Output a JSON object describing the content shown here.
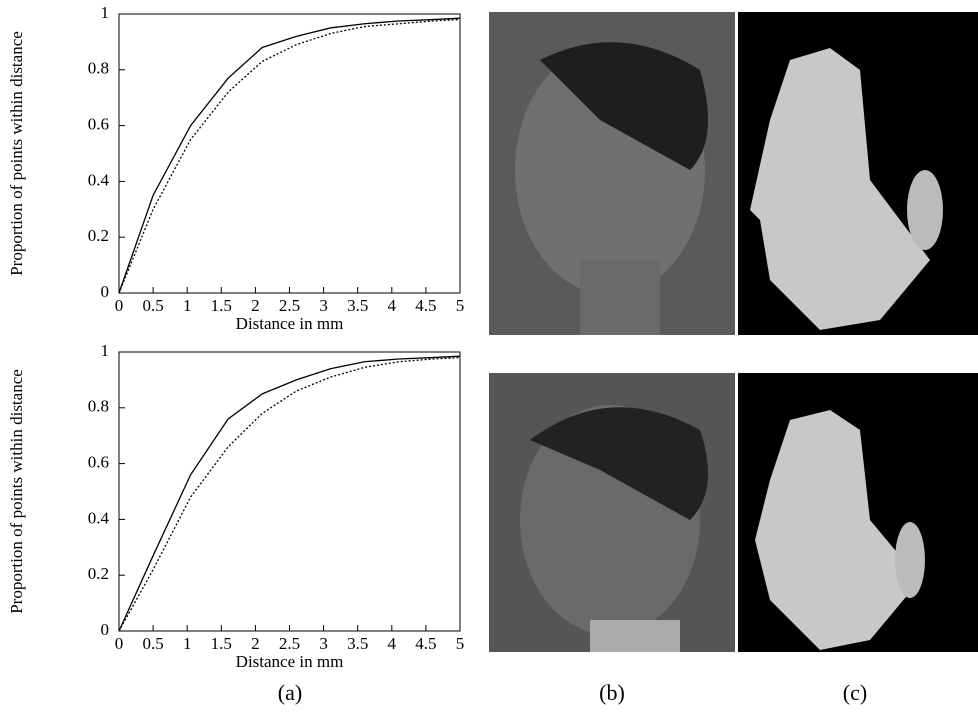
{
  "chart_data": [
    {
      "type": "line",
      "xlabel": "Distance in mm",
      "ylabel": "Proportion of points within distance",
      "x": [
        0,
        0.5,
        1.05,
        1.6,
        2.1,
        2.6,
        3.1,
        3.6,
        4.1,
        4.6,
        5
      ],
      "series": [
        {
          "color": "#000000",
          "dash": "solid",
          "values": [
            0,
            0.35,
            0.6,
            0.77,
            0.88,
            0.92,
            0.95,
            0.965,
            0.975,
            0.98,
            0.985
          ]
        },
        {
          "color": "#000000",
          "dash": "dotted",
          "values": [
            0,
            0.3,
            0.55,
            0.72,
            0.83,
            0.89,
            0.93,
            0.955,
            0.965,
            0.975,
            0.98
          ]
        }
      ],
      "xlim": [
        0,
        5
      ],
      "ylim": [
        0,
        1
      ],
      "xticks": [
        0,
        0.5,
        1,
        1.5,
        2,
        2.5,
        3,
        3.5,
        4,
        4.5,
        5
      ],
      "yticks": [
        0,
        0.2,
        0.4,
        0.6,
        0.8,
        1
      ]
    },
    {
      "type": "line",
      "xlabel": "Distance in mm",
      "ylabel": "Proportion of points within distance",
      "x": [
        0,
        0.5,
        1.05,
        1.6,
        2.1,
        2.6,
        3.1,
        3.6,
        4.1,
        4.6,
        5
      ],
      "series": [
        {
          "color": "#000000",
          "dash": "solid",
          "values": [
            0,
            0.27,
            0.56,
            0.76,
            0.85,
            0.9,
            0.94,
            0.965,
            0.975,
            0.98,
            0.985
          ]
        },
        {
          "color": "#000000",
          "dash": "dotted",
          "values": [
            0,
            0.22,
            0.48,
            0.66,
            0.78,
            0.86,
            0.91,
            0.945,
            0.965,
            0.975,
            0.98
          ]
        }
      ],
      "xlim": [
        0,
        5
      ],
      "ylim": [
        0,
        1
      ],
      "xticks": [
        0,
        0.5,
        1,
        1.5,
        2,
        2.5,
        3,
        3.5,
        4,
        4.5,
        5
      ],
      "yticks": [
        0,
        0.2,
        0.4,
        0.6,
        0.8,
        1
      ]
    }
  ],
  "captions": [
    "(a)",
    "(b)",
    "(c)"
  ]
}
